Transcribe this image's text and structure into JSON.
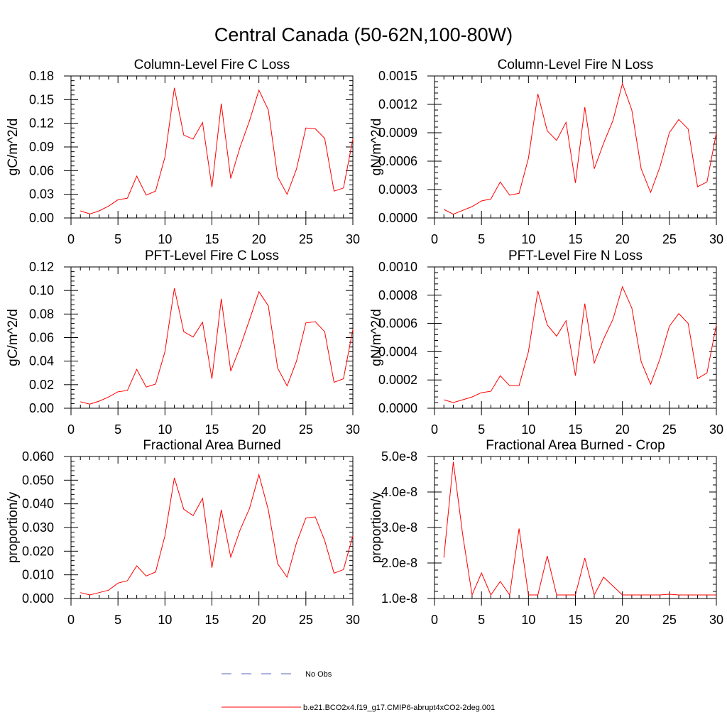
{
  "title": "Central Canada (50-62N,100-80W)",
  "colors": {
    "model": "#ff0000",
    "obs": "#5566bb",
    "axis": "#000000"
  },
  "legend": {
    "obs_label": "No Obs",
    "model_label": "b.e21.BCO2x4.f19_g17.CMIP6-abrupt4xCO2-2deg.001"
  },
  "chart_data": [
    {
      "type": "line",
      "title": "Column-Level Fire C Loss",
      "xlabel": "",
      "ylabel": "gC/m^2/d",
      "xlim": [
        0,
        30
      ],
      "ylim": [
        0,
        0.18
      ],
      "xticks": [
        "0",
        "5",
        "10",
        "15",
        "20",
        "25",
        "30"
      ],
      "yticks": [
        "0.00",
        "0.03",
        "0.06",
        "0.09",
        "0.12",
        "0.15",
        "0.18"
      ],
      "x": [
        1,
        2,
        3,
        4,
        5,
        6,
        7,
        8,
        9,
        10,
        11,
        12,
        13,
        14,
        15,
        16,
        17,
        18,
        19,
        20,
        21,
        22,
        23,
        24,
        25,
        26,
        27,
        28,
        29,
        30
      ],
      "series": [
        {
          "name": "b.e21.BCO2x4.f19_g17.CMIP6-abrupt4xCO2-2deg.001",
          "values": [
            0.009,
            0.005,
            0.009,
            0.015,
            0.023,
            0.025,
            0.053,
            0.029,
            0.034,
            0.077,
            0.165,
            0.105,
            0.1,
            0.121,
            0.039,
            0.145,
            0.05,
            0.09,
            0.123,
            0.162,
            0.137,
            0.052,
            0.03,
            0.062,
            0.114,
            0.113,
            0.101,
            0.034,
            0.038,
            0.1
          ]
        }
      ]
    },
    {
      "type": "line",
      "title": "Column-Level Fire N Loss",
      "xlabel": "",
      "ylabel": "gN/m^2/d",
      "xlim": [
        0,
        30
      ],
      "ylim": [
        0,
        0.0015
      ],
      "xticks": [
        "0",
        "5",
        "10",
        "15",
        "20",
        "25",
        "30"
      ],
      "yticks": [
        "0.0000",
        "0.0003",
        "0.0006",
        "0.0009",
        "0.0012",
        "0.0015"
      ],
      "x": [
        1,
        2,
        3,
        4,
        5,
        6,
        7,
        8,
        9,
        10,
        11,
        12,
        13,
        14,
        15,
        16,
        17,
        18,
        19,
        20,
        21,
        22,
        23,
        24,
        25,
        26,
        27,
        28,
        29,
        30
      ],
      "series": [
        {
          "name": "b.e21.BCO2x4.f19_g17.CMIP6-abrupt4xCO2-2deg.001",
          "values": [
            9e-05,
            4e-05,
            8e-05,
            0.00012,
            0.00018,
            0.0002,
            0.00038,
            0.00024,
            0.00026,
            0.00063,
            0.00131,
            0.00092,
            0.00082,
            0.00101,
            0.00037,
            0.00117,
            0.00052,
            0.00079,
            0.00103,
            0.00142,
            0.00114,
            0.00052,
            0.00027,
            0.00054,
            0.0009,
            0.00104,
            0.00094,
            0.00033,
            0.00038,
            0.0009
          ]
        }
      ]
    },
    {
      "type": "line",
      "title": "PFT-Level Fire C Loss",
      "xlabel": "",
      "ylabel": "gC/m^2/d",
      "xlim": [
        0,
        30
      ],
      "ylim": [
        0,
        0.12
      ],
      "xticks": [
        "0",
        "5",
        "10",
        "15",
        "20",
        "25",
        "30"
      ],
      "yticks": [
        "0.00",
        "0.02",
        "0.04",
        "0.06",
        "0.08",
        "0.10",
        "0.12"
      ],
      "x": [
        1,
        2,
        3,
        4,
        5,
        6,
        7,
        8,
        9,
        10,
        11,
        12,
        13,
        14,
        15,
        16,
        17,
        18,
        19,
        20,
        21,
        22,
        23,
        24,
        25,
        26,
        27,
        28,
        29,
        30
      ],
      "series": [
        {
          "name": "b.e21.BCO2x4.f19_g17.CMIP6-abrupt4xCO2-2deg.001",
          "values": [
            0.0055,
            0.0035,
            0.006,
            0.0095,
            0.014,
            0.015,
            0.033,
            0.018,
            0.0205,
            0.048,
            0.102,
            0.065,
            0.0605,
            0.073,
            0.025,
            0.093,
            0.0315,
            0.052,
            0.075,
            0.099,
            0.087,
            0.034,
            0.019,
            0.04,
            0.0725,
            0.0735,
            0.065,
            0.022,
            0.025,
            0.067
          ]
        }
      ]
    },
    {
      "type": "line",
      "title": "PFT-Level Fire N Loss",
      "xlabel": "",
      "ylabel": "gN/m^2/d",
      "xlim": [
        0,
        30
      ],
      "ylim": [
        0,
        0.001
      ],
      "xticks": [
        "0",
        "5",
        "10",
        "15",
        "20",
        "25",
        "30"
      ],
      "yticks": [
        "0.0000",
        "0.0002",
        "0.0004",
        "0.0006",
        "0.0008",
        "0.0010"
      ],
      "x": [
        1,
        2,
        3,
        4,
        5,
        6,
        7,
        8,
        9,
        10,
        11,
        12,
        13,
        14,
        15,
        16,
        17,
        18,
        19,
        20,
        21,
        22,
        23,
        24,
        25,
        26,
        27,
        28,
        29,
        30
      ],
      "series": [
        {
          "name": "b.e21.BCO2x4.f19_g17.CMIP6-abrupt4xCO2-2deg.001",
          "values": [
            6e-05,
            4e-05,
            6e-05,
            8e-05,
            0.00011,
            0.00012,
            0.00023,
            0.00016,
            0.00016,
            0.0004,
            0.00083,
            0.00059,
            0.00051,
            0.00062,
            0.00023,
            0.00074,
            0.00032,
            0.00049,
            0.00063,
            0.00086,
            0.00071,
            0.00033,
            0.00017,
            0.00035,
            0.00058,
            0.00067,
            0.0006,
            0.00021,
            0.00025,
            0.00059
          ]
        }
      ]
    },
    {
      "type": "line",
      "title": "Fractional Area Burned",
      "xlabel": "",
      "ylabel": "proportion/y",
      "xlim": [
        0,
        30
      ],
      "ylim": [
        0,
        0.06
      ],
      "xticks": [
        "0",
        "5",
        "10",
        "15",
        "20",
        "25",
        "30"
      ],
      "yticks": [
        "0.000",
        "0.010",
        "0.020",
        "0.030",
        "0.040",
        "0.050",
        "0.060"
      ],
      "x": [
        1,
        2,
        3,
        4,
        5,
        6,
        7,
        8,
        9,
        10,
        11,
        12,
        13,
        14,
        15,
        16,
        17,
        18,
        19,
        20,
        21,
        22,
        23,
        24,
        25,
        26,
        27,
        28,
        29,
        30
      ],
      "series": [
        {
          "name": "b.e21.BCO2x4.f19_g17.CMIP6-abrupt4xCO2-2deg.001",
          "values": [
            0.0025,
            0.0015,
            0.0025,
            0.0035,
            0.0065,
            0.0075,
            0.0138,
            0.0095,
            0.0112,
            0.0265,
            0.051,
            0.0377,
            0.035,
            0.0423,
            0.013,
            0.0375,
            0.0175,
            0.029,
            0.038,
            0.0523,
            0.0375,
            0.0147,
            0.009,
            0.0235,
            0.034,
            0.0345,
            0.0245,
            0.0107,
            0.0122,
            0.0265
          ]
        }
      ]
    },
    {
      "type": "line",
      "title": "Fractional Area Burned - Crop",
      "xlabel": "",
      "ylabel": "proportion/y",
      "xlim": [
        0,
        30
      ],
      "ylim": [
        1e-08,
        5e-08
      ],
      "xticks": [
        "0",
        "5",
        "10",
        "15",
        "20",
        "25",
        "30"
      ],
      "yticks": [
        "1.0e-8",
        "2.0e-8",
        "3.0e-8",
        "4.0e-8",
        "5.0e-8"
      ],
      "x": [
        1,
        2,
        3,
        4,
        5,
        6,
        7,
        8,
        9,
        10,
        11,
        12,
        13,
        14,
        15,
        16,
        17,
        18,
        19,
        20,
        21,
        22,
        23,
        24,
        25,
        26,
        27,
        28,
        29,
        30
      ],
      "series": [
        {
          "name": "b.e21.BCO2x4.f19_g17.CMIP6-abrupt4xCO2-2deg.001",
          "values": [
            2.15e-08,
            4.85e-08,
            2.8e-08,
            1.1e-08,
            1.72e-08,
            1.1e-08,
            1.48e-08,
            1.1e-08,
            2.97e-08,
            1.1e-08,
            1.1e-08,
            2.2e-08,
            1.1e-08,
            1.1e-08,
            1.1e-08,
            2.14e-08,
            1.1e-08,
            1.6e-08,
            1.35e-08,
            1.1e-08,
            1.1e-08,
            1.1e-08,
            1.1e-08,
            1.1e-08,
            1.12e-08,
            1.1e-08,
            1.1e-08,
            1.1e-08,
            1.1e-08,
            1.1e-08
          ]
        }
      ]
    }
  ]
}
